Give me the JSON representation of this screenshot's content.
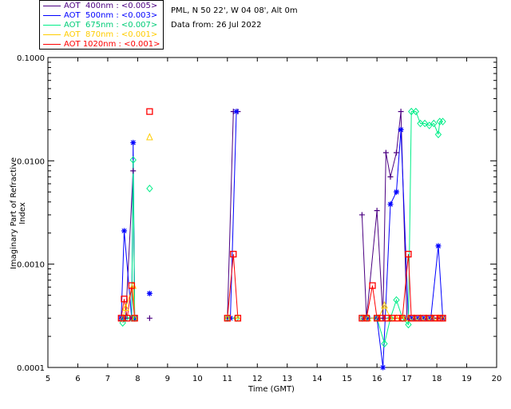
{
  "header": {
    "site_line": "PML, N 50 22', W 04 08', Alt 0m",
    "date_line": "Data from: 26 Jul 2022"
  },
  "legend": [
    {
      "label": "AOT  400nm : <0.005>",
      "color": "#4b0082"
    },
    {
      "label": "AOT  500nm : <0.003>",
      "color": "#0000ff"
    },
    {
      "label": "AOT  675nm : <0.007>",
      "color": "#00ee88"
    },
    {
      "label": "AOT  870nm : <0.001>",
      "color": "#ffcc00"
    },
    {
      "label": "AOT 1020nm : <0.001>",
      "color": "#ff0000"
    }
  ],
  "chart_data": {
    "type": "line",
    "title": "",
    "xlabel": "Time (GMT)",
    "ylabel": "Imaginary Part of Refractive Index",
    "xlim": [
      5,
      20
    ],
    "ylim": [
      0.0001,
      0.1
    ],
    "yscale": "log",
    "x_ticks": [
      "5",
      "6",
      "7",
      "8",
      "9",
      "10",
      "11",
      "12",
      "13",
      "14",
      "15",
      "16",
      "17",
      "18",
      "19",
      "20"
    ],
    "y_ticks": [
      {
        "value": 0.0001,
        "label": "0.0001"
      },
      {
        "value": 0.001,
        "label": "0.0010"
      },
      {
        "value": 0.01,
        "label": "0.0100"
      },
      {
        "value": 0.1,
        "label": "0.1000"
      }
    ],
    "series": [
      {
        "name": "AOT 400nm",
        "color": "#4b0082",
        "marker": "plus",
        "segments": [
          [
            [
              7.45,
              0.0003
            ],
            [
              7.6,
              0.0003
            ],
            [
              7.85,
              0.008
            ],
            [
              7.9,
              0.0003
            ]
          ],
          [
            [
              8.4,
              0.0003
            ]
          ],
          [
            [
              11.0,
              0.0003
            ],
            [
              11.2,
              0.03
            ],
            [
              11.35,
              0.03
            ]
          ],
          [
            [
              15.5,
              0.003
            ],
            [
              15.65,
              0.0003
            ],
            [
              16.0,
              0.0033
            ],
            [
              16.2,
              0.0003
            ],
            [
              16.3,
              0.012
            ],
            [
              16.45,
              0.007
            ],
            [
              16.65,
              0.012
            ],
            [
              16.8,
              0.03
            ],
            [
              17.0,
              0.0003
            ],
            [
              17.1,
              0.0003
            ],
            [
              17.3,
              0.0003
            ],
            [
              17.5,
              0.0003
            ],
            [
              17.7,
              0.0003
            ],
            [
              17.9,
              0.0003
            ],
            [
              18.05,
              0.0003
            ],
            [
              18.2,
              0.0003
            ]
          ]
        ]
      },
      {
        "name": "AOT 500nm",
        "color": "#0000ff",
        "marker": "star",
        "segments": [
          [
            [
              7.45,
              0.0003
            ],
            [
              7.55,
              0.0021
            ],
            [
              7.8,
              0.0003
            ],
            [
              7.85,
              0.015
            ],
            [
              7.9,
              0.0003
            ]
          ],
          [
            [
              8.4,
              0.00052
            ]
          ],
          [
            [
              11.1,
              0.0003
            ],
            [
              11.3,
              0.03
            ]
          ],
          [
            [
              15.55,
              0.0003
            ],
            [
              15.7,
              0.0003
            ],
            [
              16.0,
              0.0003
            ],
            [
              16.2,
              0.0001
            ],
            [
              16.45,
              0.0038
            ],
            [
              16.65,
              0.005
            ],
            [
              16.8,
              0.02
            ],
            [
              17.05,
              0.0003
            ],
            [
              17.2,
              0.0003
            ],
            [
              17.4,
              0.0003
            ],
            [
              17.6,
              0.0003
            ],
            [
              17.8,
              0.0003
            ],
            [
              18.05,
              0.0015
            ],
            [
              18.2,
              0.0003
            ]
          ]
        ]
      },
      {
        "name": "AOT 675nm",
        "color": "#00ee88",
        "marker": "diamond",
        "segments": [
          [
            [
              7.5,
              0.00027
            ],
            [
              7.6,
              0.0003
            ],
            [
              7.8,
              0.0003
            ],
            [
              7.85,
              0.0102
            ],
            [
              7.9,
              0.0003
            ]
          ],
          [
            [
              8.4,
              0.0054
            ]
          ],
          [
            [
              11.0,
              0.0003
            ],
            [
              11.3,
              0.0003
            ]
          ],
          [
            [
              15.5,
              0.0003
            ],
            [
              15.65,
              0.0003
            ],
            [
              16.0,
              0.0003
            ],
            [
              16.25,
              0.00017
            ],
            [
              16.45,
              0.0003
            ],
            [
              16.65,
              0.00045
            ],
            [
              16.85,
              0.0003
            ],
            [
              17.05,
              0.00026
            ],
            [
              17.15,
              0.03
            ],
            [
              17.3,
              0.03
            ],
            [
              17.45,
              0.023
            ],
            [
              17.6,
              0.023
            ],
            [
              17.75,
              0.022
            ],
            [
              17.9,
              0.023
            ],
            [
              18.05,
              0.018
            ],
            [
              18.1,
              0.024
            ],
            [
              18.2,
              0.024
            ]
          ]
        ]
      },
      {
        "name": "AOT 870nm",
        "color": "#ffcc00",
        "marker": "triangle",
        "segments": [
          [
            [
              7.5,
              0.0003
            ],
            [
              7.6,
              0.00038
            ],
            [
              7.85,
              0.00062
            ],
            [
              7.9,
              0.0003
            ]
          ],
          [
            [
              8.4,
              0.017
            ]
          ],
          [
            [
              11.0,
              0.0003
            ],
            [
              11.35,
              0.0003
            ]
          ],
          [
            [
              15.55,
              0.0003
            ],
            [
              15.7,
              0.0003
            ],
            [
              16.05,
              0.0003
            ],
            [
              16.25,
              0.0004
            ],
            [
              16.45,
              0.0003
            ],
            [
              16.65,
              0.0003
            ],
            [
              16.85,
              0.0003
            ],
            [
              17.05,
              0.0003
            ],
            [
              17.25,
              0.0003
            ],
            [
              17.45,
              0.0003
            ],
            [
              17.65,
              0.0003
            ],
            [
              17.85,
              0.0003
            ],
            [
              18.05,
              0.0003
            ],
            [
              18.2,
              0.0003
            ]
          ]
        ]
      },
      {
        "name": "AOT 1020nm",
        "color": "#ff0000",
        "marker": "square",
        "segments": [
          [
            [
              7.45,
              0.0003
            ],
            [
              7.55,
              0.00046
            ],
            [
              7.65,
              0.0003
            ],
            [
              7.8,
              0.00062
            ],
            [
              7.9,
              0.0003
            ]
          ],
          [
            [
              8.4,
              0.03
            ]
          ],
          [
            [
              11.0,
              0.0003
            ],
            [
              11.2,
              0.00125
            ],
            [
              11.35,
              0.0003
            ]
          ],
          [
            [
              15.5,
              0.0003
            ],
            [
              15.65,
              0.0003
            ],
            [
              15.85,
              0.00062
            ],
            [
              16.0,
              0.0003
            ],
            [
              16.15,
              0.0003
            ],
            [
              16.35,
              0.0003
            ],
            [
              16.5,
              0.0003
            ],
            [
              16.7,
              0.0003
            ],
            [
              16.85,
              0.0003
            ],
            [
              17.05,
              0.00125
            ],
            [
              17.15,
              0.0003
            ],
            [
              17.35,
              0.0003
            ],
            [
              17.55,
              0.0003
            ],
            [
              17.75,
              0.0003
            ],
            [
              17.95,
              0.0003
            ],
            [
              18.1,
              0.0003
            ],
            [
              18.2,
              0.0003
            ]
          ]
        ]
      }
    ]
  }
}
